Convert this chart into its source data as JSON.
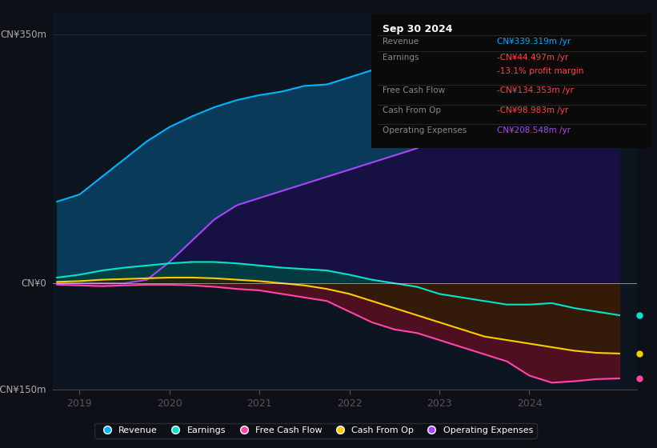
{
  "background_color": "#0d1117",
  "chart_bg": "#0d1520",
  "ylabel_top": "CN¥350m",
  "ylabel_zero": "CN¥0",
  "ylabel_bottom": "-CN¥150m",
  "ylim": [
    -150,
    380
  ],
  "xlim": [
    2018.7,
    2025.2
  ],
  "x_ticks": [
    2019,
    2020,
    2021,
    2022,
    2023,
    2024
  ],
  "info_box": {
    "date": "Sep 30 2024",
    "rows": [
      {
        "label": "Revenue",
        "value": "CN¥339.319m /yr",
        "value_color": "#00aaff"
      },
      {
        "label": "Earnings",
        "value": "-CN¥44.497m /yr",
        "value_color": "#ff4444"
      },
      {
        "label": "",
        "value": "-13.1% profit margin",
        "value_color": "#ff4444"
      },
      {
        "label": "Free Cash Flow",
        "value": "-CN¥134.353m /yr",
        "value_color": "#ff4444"
      },
      {
        "label": "Cash From Op",
        "value": "-CN¥98.983m /yr",
        "value_color": "#ff4444"
      },
      {
        "label": "Operating Expenses",
        "value": "CN¥208.548m /yr",
        "value_color": "#aa44ff"
      }
    ]
  },
  "series": {
    "revenue": {
      "color": "#00b4ff",
      "label": "Revenue",
      "x": [
        2018.75,
        2019.0,
        2019.25,
        2019.5,
        2019.75,
        2020.0,
        2020.25,
        2020.5,
        2020.75,
        2021.0,
        2021.25,
        2021.5,
        2021.75,
        2022.0,
        2022.25,
        2022.5,
        2022.75,
        2023.0,
        2023.25,
        2023.5,
        2023.75,
        2024.0,
        2024.25,
        2024.5,
        2024.75,
        2025.0
      ],
      "y": [
        115,
        125,
        150,
        175,
        200,
        220,
        235,
        248,
        258,
        265,
        270,
        278,
        280,
        290,
        300,
        308,
        310,
        300,
        295,
        295,
        300,
        310,
        325,
        335,
        340,
        339
      ]
    },
    "earnings": {
      "color": "#00e5cc",
      "label": "Earnings",
      "x": [
        2018.75,
        2019.0,
        2019.25,
        2019.5,
        2019.75,
        2020.0,
        2020.25,
        2020.5,
        2020.75,
        2021.0,
        2021.25,
        2021.5,
        2021.75,
        2022.0,
        2022.25,
        2022.5,
        2022.75,
        2023.0,
        2023.25,
        2023.5,
        2023.75,
        2024.0,
        2024.25,
        2024.5,
        2024.75,
        2025.0
      ],
      "y": [
        8,
        12,
        18,
        22,
        25,
        28,
        30,
        30,
        28,
        25,
        22,
        20,
        18,
        12,
        5,
        0,
        -5,
        -15,
        -20,
        -25,
        -30,
        -30,
        -28,
        -35,
        -40,
        -45
      ]
    },
    "fcf": {
      "color": "#ff44aa",
      "label": "Free Cash Flow",
      "x": [
        2018.75,
        2019.0,
        2019.25,
        2019.5,
        2019.75,
        2020.0,
        2020.25,
        2020.5,
        2020.75,
        2021.0,
        2021.25,
        2021.5,
        2021.75,
        2022.0,
        2022.25,
        2022.5,
        2022.75,
        2023.0,
        2023.25,
        2023.5,
        2023.75,
        2024.0,
        2024.25,
        2024.5,
        2024.75,
        2025.0
      ],
      "y": [
        -2,
        -3,
        -4,
        -3,
        -2,
        -2,
        -3,
        -5,
        -8,
        -10,
        -15,
        -20,
        -25,
        -40,
        -55,
        -65,
        -70,
        -80,
        -90,
        -100,
        -110,
        -130,
        -140,
        -138,
        -135,
        -134
      ]
    },
    "cashfromop": {
      "color": "#ffcc00",
      "label": "Cash From Op",
      "x": [
        2018.75,
        2019.0,
        2019.25,
        2019.5,
        2019.75,
        2020.0,
        2020.25,
        2020.5,
        2020.75,
        2021.0,
        2021.25,
        2021.5,
        2021.75,
        2022.0,
        2022.25,
        2022.5,
        2022.75,
        2023.0,
        2023.25,
        2023.5,
        2023.75,
        2024.0,
        2024.25,
        2024.5,
        2024.75,
        2025.0
      ],
      "y": [
        2,
        3,
        5,
        6,
        7,
        8,
        8,
        7,
        5,
        3,
        0,
        -3,
        -8,
        -15,
        -25,
        -35,
        -45,
        -55,
        -65,
        -75,
        -80,
        -85,
        -90,
        -95,
        -98,
        -99
      ]
    },
    "opex": {
      "color": "#aa44ff",
      "label": "Operating Expenses",
      "x": [
        2018.75,
        2019.0,
        2019.25,
        2019.5,
        2019.75,
        2020.0,
        2020.25,
        2020.5,
        2020.75,
        2021.0,
        2021.25,
        2021.5,
        2021.75,
        2022.0,
        2022.25,
        2022.5,
        2022.75,
        2023.0,
        2023.25,
        2023.5,
        2023.75,
        2024.0,
        2024.25,
        2024.5,
        2024.75,
        2025.0
      ],
      "y": [
        0,
        0,
        0,
        0,
        5,
        30,
        60,
        90,
        110,
        120,
        130,
        140,
        150,
        160,
        170,
        180,
        190,
        210,
        225,
        230,
        228,
        222,
        218,
        215,
        210,
        209
      ]
    }
  },
  "legend": [
    {
      "label": "Revenue",
      "color": "#00b4ff"
    },
    {
      "label": "Earnings",
      "color": "#00e5cc"
    },
    {
      "label": "Free Cash Flow",
      "color": "#ff44aa"
    },
    {
      "label": "Cash From Op",
      "color": "#ffcc00"
    },
    {
      "label": "Operating Expenses",
      "color": "#aa44ff"
    }
  ]
}
